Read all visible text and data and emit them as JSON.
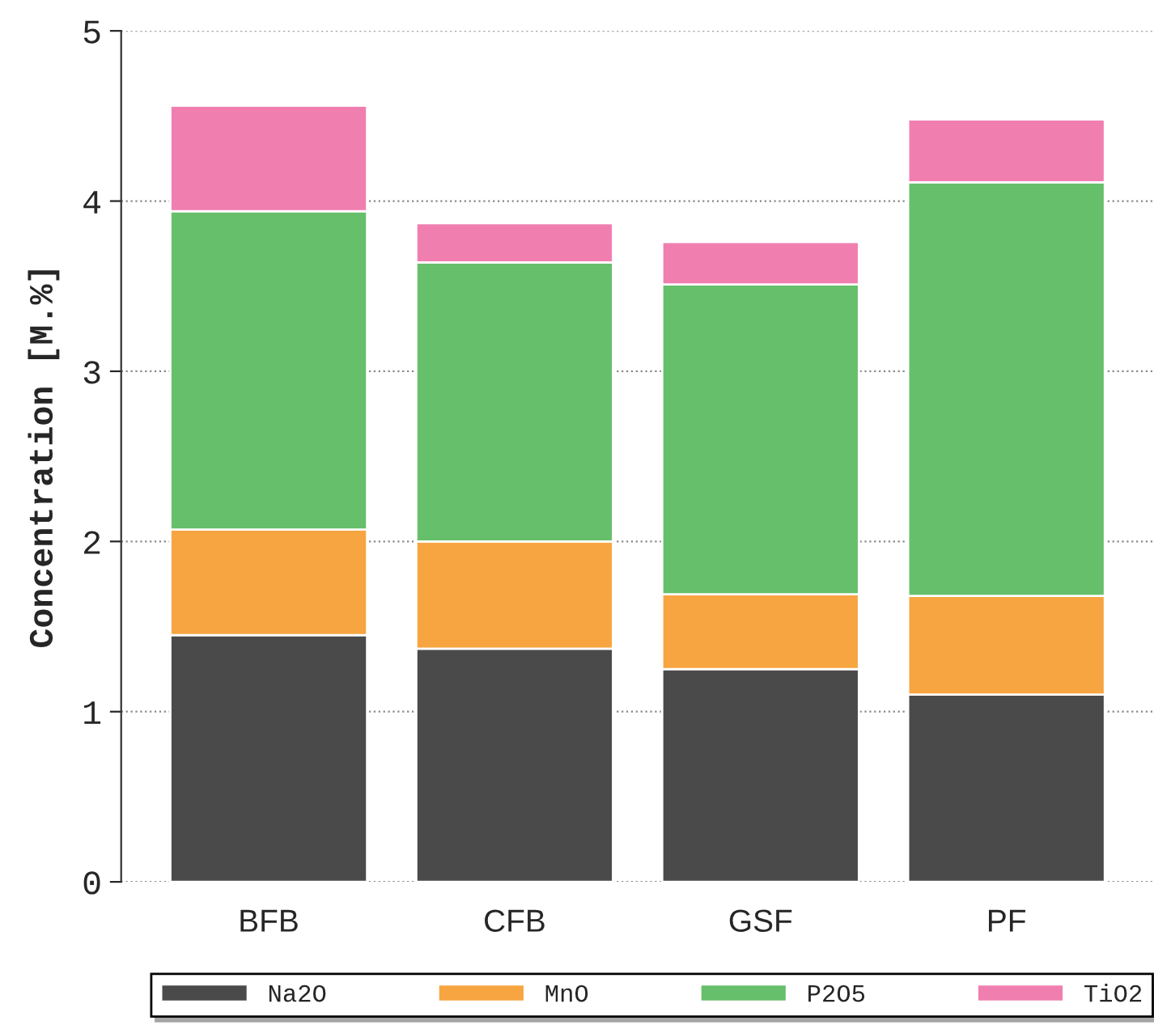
{
  "chart_data": {
    "type": "bar",
    "stacked": true,
    "ylabel": "Concentration [M.%]",
    "categories": [
      "BFB",
      "CFB",
      "GSF",
      "PF"
    ],
    "series": [
      {
        "name": "Na2O",
        "color": "#4a4a4a",
        "values": [
          1.45,
          1.37,
          1.25,
          1.1
        ]
      },
      {
        "name": "MnO",
        "color": "#f7a541",
        "values": [
          0.62,
          0.63,
          0.44,
          0.58
        ]
      },
      {
        "name": "P2O5",
        "color": "#66bf6a",
        "values": [
          1.87,
          1.64,
          1.82,
          2.43
        ]
      },
      {
        "name": "TiO2",
        "color": "#f07fb0",
        "values": [
          0.62,
          0.23,
          0.25,
          0.37
        ]
      }
    ],
    "ylim": [
      0,
      5
    ],
    "yticks": [
      0,
      1,
      2,
      3,
      4,
      5
    ],
    "grid": "y",
    "legend": "bottom"
  }
}
